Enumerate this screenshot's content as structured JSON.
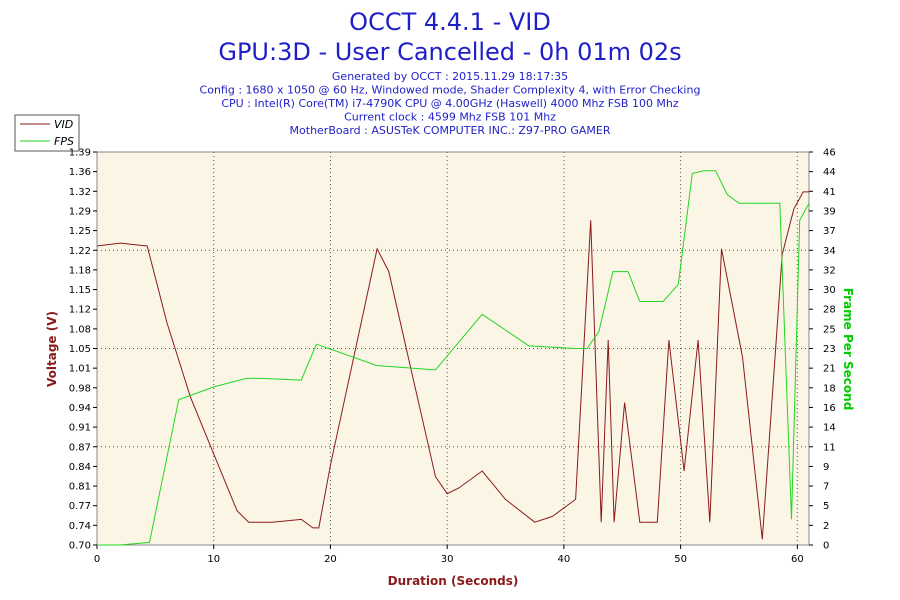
{
  "header": {
    "title": "OCCT 4.4.1 - VID",
    "subtitle": "GPU:3D - User Cancelled - 0h 01m 02s",
    "info_lines": [
      "Generated by OCCT : 2015.11.29 18:17:35",
      "Config : 1680 x 1050 @ 60 Hz, Windowed mode, Shader Complexity 4, with Error Checking",
      "CPU : Intel(R) Core(TM) i7-4790K CPU @ 4.00GHz (Haswell) 4000 Mhz FSB 100 Mhz",
      "Current clock : 4599 Mhz FSB 101 Mhz",
      "MotherBoard : ASUSTeK COMPUTER INC.: Z97-PRO GAMER"
    ]
  },
  "colors": {
    "vid": "#8b1a1a",
    "fps": "#22d622",
    "plot_bg": "#fbf5e6",
    "title": "#1f1fc8"
  },
  "chart_data": {
    "type": "line",
    "title": "OCCT 4.4.1 - VID",
    "xlabel": "Duration (Seconds)",
    "ylabel_left": "Voltage (V)",
    "ylabel_right": "Frame Per Second",
    "xlim": [
      0,
      61
    ],
    "ylim_left": [
      0.7,
      1.39
    ],
    "ylim_right": [
      0,
      46
    ],
    "x_ticks": [
      0,
      10,
      20,
      30,
      40,
      50,
      60
    ],
    "y_left_ticks": [
      "0.70",
      "0.74",
      "0.77",
      "0.81",
      "0.84",
      "0.87",
      "0.91",
      "0.94",
      "0.98",
      "1.01",
      "1.05",
      "1.08",
      "1.12",
      "1.15",
      "1.18",
      "1.22",
      "1.25",
      "1.29",
      "1.32",
      "1.36",
      "1.39"
    ],
    "y_right_ticks": [
      "0",
      "2",
      "5",
      "7",
      "9",
      "11",
      "14",
      "16",
      "18",
      "21",
      "23",
      "25",
      "28",
      "30",
      "32",
      "34",
      "37",
      "39",
      "41",
      "44",
      "46"
    ],
    "grid": true,
    "legend_position": "top-left",
    "series": [
      {
        "name": "VID",
        "axis": "left",
        "x": [
          0,
          2,
          4.3,
          6,
          8,
          10,
          12,
          13,
          15,
          17.5,
          18.5,
          19,
          20,
          22,
          24,
          25,
          27,
          29,
          30,
          31,
          33,
          35,
          37.5,
          39,
          41,
          42.3,
          43.2,
          43.8,
          44.3,
          45.2,
          46.5,
          48,
          49,
          50.3,
          51.5,
          52.5,
          53.5,
          55.3,
          57,
          58.7,
          59.7,
          60.5,
          61
        ],
        "y": [
          1.225,
          1.23,
          1.225,
          1.09,
          0.96,
          0.86,
          0.76,
          0.74,
          0.74,
          0.745,
          0.73,
          0.73,
          0.84,
          1.03,
          1.22,
          1.18,
          1.0,
          0.82,
          0.79,
          0.8,
          0.83,
          0.78,
          0.74,
          0.75,
          0.78,
          1.27,
          0.74,
          1.06,
          0.74,
          0.95,
          0.74,
          0.74,
          1.06,
          0.83,
          1.06,
          0.74,
          1.22,
          1.03,
          0.71,
          1.21,
          1.29,
          1.32,
          1.32
        ]
      },
      {
        "name": "FPS",
        "axis": "right",
        "x": [
          0,
          2,
          4.5,
          7,
          10,
          12.8,
          14,
          17.5,
          18.8,
          24,
          29,
          33,
          37,
          41,
          42,
          43,
          44.2,
          45.5,
          46.5,
          48.5,
          49.8,
          51,
          52,
          53,
          54,
          55,
          58.5,
          59.5,
          60.2,
          61
        ],
        "y": [
          0,
          0,
          0.3,
          17,
          18.5,
          19.5,
          19.5,
          19.3,
          23.5,
          21,
          20.5,
          27,
          23.3,
          23,
          23,
          25,
          32,
          32,
          28.5,
          28.5,
          30.5,
          43.5,
          43.8,
          43.8,
          41,
          40,
          40,
          3,
          38,
          40
        ]
      }
    ]
  }
}
